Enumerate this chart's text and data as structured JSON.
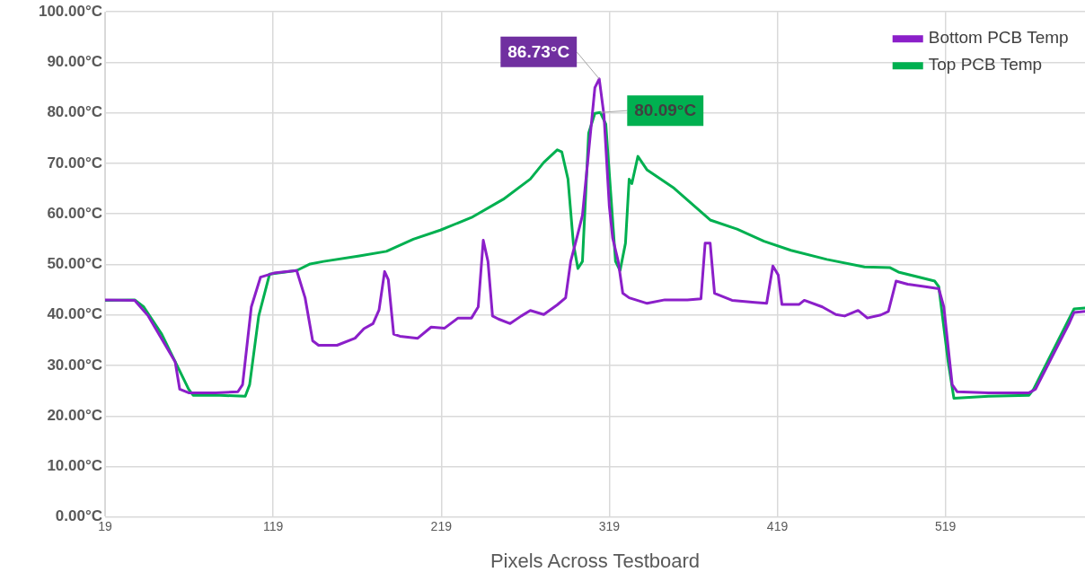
{
  "chart_data": {
    "type": "line",
    "xlabel": "Pixels Across Testboard",
    "xlim": [
      19,
      602
    ],
    "xticks": [
      19,
      119,
      219,
      319,
      419,
      519
    ],
    "ylim": [
      0,
      100
    ],
    "yticks": [
      {
        "value": 0,
        "label": "0.00°C"
      },
      {
        "value": 10,
        "label": "10.00°C"
      },
      {
        "value": 20,
        "label": "20.00°C"
      },
      {
        "value": 30,
        "label": "30.00°C"
      },
      {
        "value": 40,
        "label": "40.00°C"
      },
      {
        "value": 50,
        "label": "50.00°C"
      },
      {
        "value": 60,
        "label": "60.00°C"
      },
      {
        "value": 70,
        "label": "70.00°C"
      },
      {
        "value": 80,
        "label": "80.00°C"
      },
      {
        "value": 90,
        "label": "90.00°C"
      },
      {
        "value": 100,
        "label": "100.00°C"
      }
    ],
    "grid": true,
    "legend": "top right",
    "marker": "none",
    "line_style": "solid",
    "annotations": [
      {
        "text": "86.73°C",
        "x": 313,
        "y": 86.73
      },
      {
        "text": "80.09°C",
        "x": 313.6,
        "y": 80.09
      }
    ],
    "series": [
      {
        "name": "Bottom PCB Temp",
        "color": "#8b1fc9",
        "x": [
          19,
          36.6,
          44.7,
          60.7,
          63.4,
          68.7,
          84.8,
          98,
          100.8,
          106,
          111.5,
          119.5,
          133,
          138,
          142.5,
          146,
          157,
          167.7,
          173,
          178.4,
          182,
          185.3,
          187.5,
          190.7,
          194.4,
          205,
          213,
          221,
          229,
          237,
          241,
          244,
          246.8,
          249.5,
          253,
          260,
          266.6,
          272,
          280,
          288,
          293,
          296,
          300,
          303,
          306.7,
          310.4,
          313,
          315.8,
          319,
          321,
          324.3,
          327,
          330.8,
          341.5,
          352,
          365.5,
          373.5,
          376,
          379,
          381.6,
          392,
          405.6,
          412.6,
          416.3,
          419.5,
          421.7,
          432,
          435,
          445.7,
          453.8,
          459,
          467,
          472.5,
          480.5,
          485,
          489.6,
          496.5,
          507,
          515,
          518,
          523,
          526,
          544.7,
          568.7,
          572.5,
          592.8,
          595.5,
          602
        ],
        "values": [
          43.0,
          42.9,
          39.8,
          30.7,
          25.3,
          24.6,
          24.6,
          24.8,
          26.2,
          41.6,
          47.5,
          48.3,
          48.8,
          43.4,
          34.9,
          34.0,
          34.0,
          35.4,
          37.3,
          38.3,
          41,
          48.6,
          47,
          36.2,
          35.8,
          35.4,
          37.6,
          37.4,
          39.4,
          39.4,
          41.6,
          54.8,
          50.6,
          39.8,
          39.2,
          38.3,
          39.8,
          40.9,
          40.1,
          42,
          43.4,
          50.6,
          55.7,
          59.7,
          72.3,
          85,
          86.73,
          79.6,
          61.5,
          55.2,
          50.6,
          44.3,
          43.4,
          42.3,
          43.0,
          43.0,
          43.2,
          54.2,
          54.2,
          44.3,
          42.9,
          42.5,
          42.3,
          49.7,
          47.9,
          42.1,
          42.1,
          42.9,
          41.6,
          40.1,
          39.8,
          40.9,
          39.4,
          40,
          40.7,
          46.7,
          46.1,
          45.6,
          45.2,
          41.6,
          26.2,
          24.8,
          24.6,
          24.6,
          25.3,
          38.5,
          40.5,
          40.7
        ]
      },
      {
        "name": "Top PCB Temp",
        "color": "#00b050",
        "x": [
          19,
          36.6,
          42,
          52.7,
          68.7,
          71.4,
          87.4,
          102.4,
          105,
          110.4,
          116.9,
          133,
          141,
          149,
          170.3,
          186.4,
          202.4,
          218.5,
          237,
          255.9,
          272,
          280,
          288,
          290.7,
          294.4,
          297.6,
          300.3,
          303,
          306.7,
          310.4,
          313.6,
          316.9,
          320,
          322.7,
          325.4,
          328.6,
          330.8,
          332.4,
          336,
          341.5,
          357.5,
          379,
          395,
          411,
          427,
          448.4,
          470.8,
          485.8,
          491,
          512.6,
          515,
          520.6,
          524,
          544.7,
          568.7,
          571.4,
          595.5,
          602
        ],
        "values": [
          42.9,
          43.0,
          41.6,
          36.2,
          25.3,
          24.1,
          24.1,
          23.9,
          26.2,
          39.8,
          48.1,
          48.8,
          50.1,
          50.6,
          51.7,
          52.6,
          55.0,
          56.8,
          59.3,
          62.9,
          66.9,
          70.2,
          72.7,
          72.3,
          66.9,
          54.2,
          49.2,
          50.6,
          76,
          79.9,
          80.09,
          77.8,
          63.3,
          50.6,
          48.8,
          54.2,
          66.9,
          66,
          71.4,
          68.7,
          65.1,
          58.8,
          57.0,
          54.6,
          52.8,
          51.0,
          49.5,
          49.4,
          48.5,
          46.7,
          45.6,
          30.7,
          23.5,
          23.9,
          24.1,
          25.3,
          41.2,
          41.4
        ]
      }
    ]
  }
}
